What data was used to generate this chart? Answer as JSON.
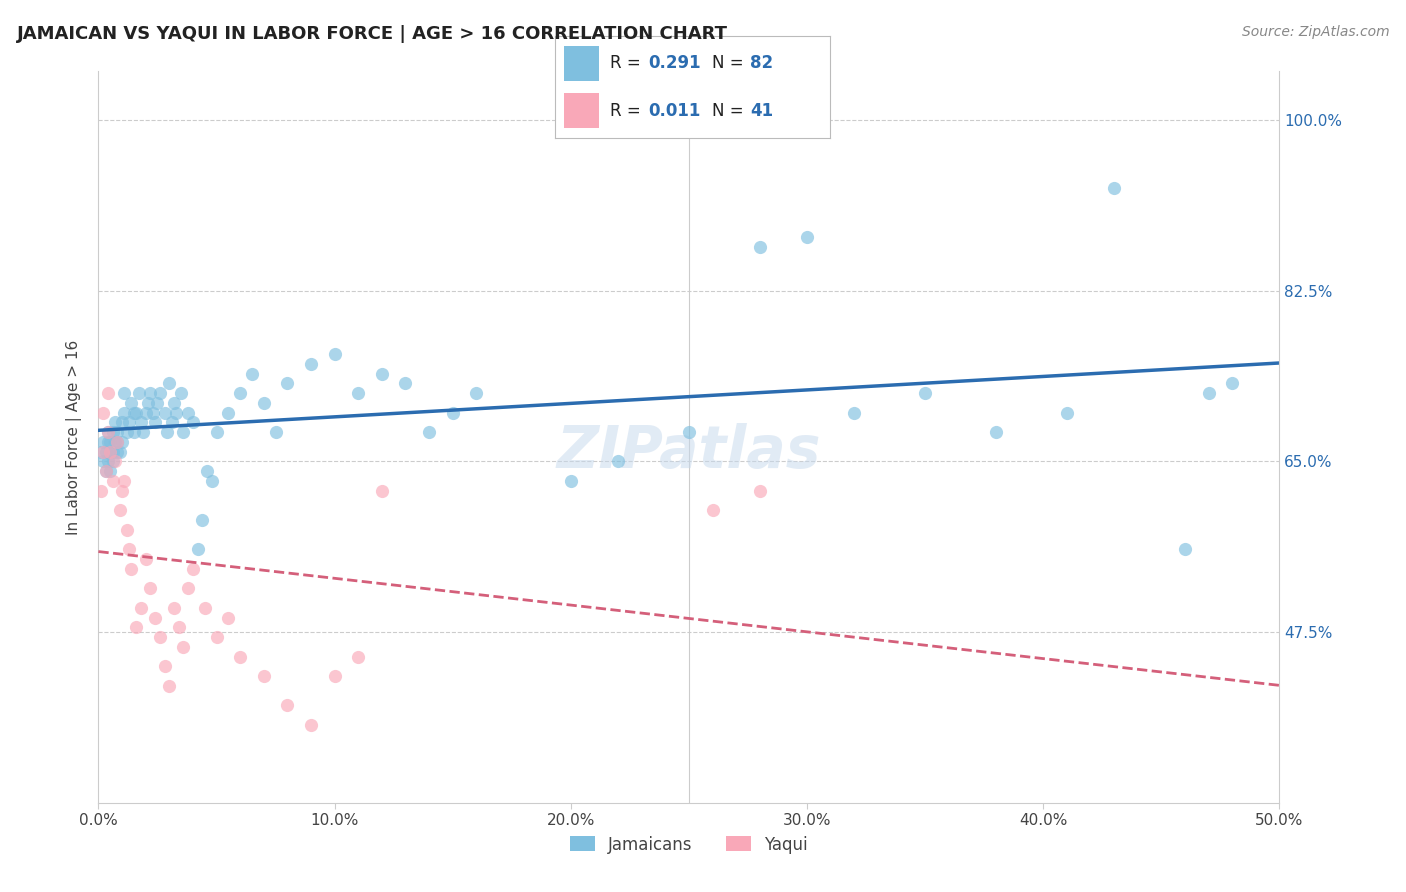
{
  "title": "JAMAICAN VS YAQUI IN LABOR FORCE | AGE > 16 CORRELATION CHART",
  "source": "Source: ZipAtlas.com",
  "ylabel": "In Labor Force | Age > 16",
  "xlim": [
    0.0,
    0.5
  ],
  "ylim": [
    0.3,
    1.05
  ],
  "xtick_labels": [
    "0.0%",
    "10.0%",
    "20.0%",
    "30.0%",
    "40.0%",
    "50.0%"
  ],
  "xtick_vals": [
    0.0,
    0.1,
    0.2,
    0.3,
    0.4,
    0.5
  ],
  "ytick_labels": [
    "100.0%",
    "82.5%",
    "65.0%",
    "47.5%"
  ],
  "ytick_vals": [
    1.0,
    0.825,
    0.65,
    0.475
  ],
  "background_color": "#ffffff",
  "watermark": "ZIPatlas",
  "jamaicans_color": "#7fbfdf",
  "yaqui_color": "#f9a8b8",
  "trend_blue": "#2b6cb0",
  "trend_pink": "#d45f7a",
  "R_jamaicans": 0.291,
  "N_jamaicans": 82,
  "R_yaqui": 0.011,
  "N_yaqui": 41,
  "legend_labels": [
    "Jamaicans",
    "Yaqui"
  ],
  "jamaicans_x": [
    0.001,
    0.002,
    0.002,
    0.003,
    0.003,
    0.004,
    0.004,
    0.004,
    0.005,
    0.005,
    0.005,
    0.006,
    0.006,
    0.006,
    0.007,
    0.007,
    0.008,
    0.008,
    0.008,
    0.009,
    0.01,
    0.01,
    0.011,
    0.011,
    0.012,
    0.013,
    0.014,
    0.015,
    0.015,
    0.016,
    0.017,
    0.018,
    0.019,
    0.02,
    0.021,
    0.022,
    0.023,
    0.024,
    0.025,
    0.026,
    0.028,
    0.029,
    0.03,
    0.031,
    0.032,
    0.033,
    0.035,
    0.036,
    0.038,
    0.04,
    0.042,
    0.044,
    0.046,
    0.048,
    0.05,
    0.055,
    0.06,
    0.065,
    0.07,
    0.075,
    0.08,
    0.09,
    0.1,
    0.11,
    0.12,
    0.13,
    0.14,
    0.15,
    0.16,
    0.2,
    0.22,
    0.25,
    0.28,
    0.3,
    0.32,
    0.35,
    0.38,
    0.41,
    0.43,
    0.46,
    0.47,
    0.48
  ],
  "jamaicans_y": [
    0.66,
    0.65,
    0.67,
    0.64,
    0.66,
    0.65,
    0.67,
    0.68,
    0.64,
    0.66,
    0.67,
    0.65,
    0.66,
    0.68,
    0.67,
    0.69,
    0.66,
    0.67,
    0.68,
    0.66,
    0.67,
    0.69,
    0.72,
    0.7,
    0.68,
    0.69,
    0.71,
    0.7,
    0.68,
    0.7,
    0.72,
    0.69,
    0.68,
    0.7,
    0.71,
    0.72,
    0.7,
    0.69,
    0.71,
    0.72,
    0.7,
    0.68,
    0.73,
    0.69,
    0.71,
    0.7,
    0.72,
    0.68,
    0.7,
    0.69,
    0.56,
    0.59,
    0.64,
    0.63,
    0.68,
    0.7,
    0.72,
    0.74,
    0.71,
    0.68,
    0.73,
    0.75,
    0.76,
    0.72,
    0.74,
    0.73,
    0.68,
    0.7,
    0.72,
    0.63,
    0.65,
    0.68,
    0.87,
    0.88,
    0.7,
    0.72,
    0.68,
    0.7,
    0.93,
    0.56,
    0.72,
    0.73
  ],
  "yaqui_x": [
    0.001,
    0.002,
    0.002,
    0.003,
    0.004,
    0.004,
    0.005,
    0.006,
    0.007,
    0.008,
    0.009,
    0.01,
    0.011,
    0.012,
    0.013,
    0.014,
    0.016,
    0.018,
    0.02,
    0.022,
    0.024,
    0.026,
    0.028,
    0.03,
    0.032,
    0.034,
    0.036,
    0.038,
    0.04,
    0.045,
    0.05,
    0.055,
    0.06,
    0.07,
    0.08,
    0.09,
    0.1,
    0.11,
    0.12,
    0.26,
    0.28
  ],
  "yaqui_y": [
    0.62,
    0.66,
    0.7,
    0.64,
    0.68,
    0.72,
    0.66,
    0.63,
    0.65,
    0.67,
    0.6,
    0.62,
    0.63,
    0.58,
    0.56,
    0.54,
    0.48,
    0.5,
    0.55,
    0.52,
    0.49,
    0.47,
    0.44,
    0.42,
    0.5,
    0.48,
    0.46,
    0.52,
    0.54,
    0.5,
    0.47,
    0.49,
    0.45,
    0.43,
    0.4,
    0.38,
    0.43,
    0.45,
    0.62,
    0.6,
    0.62
  ]
}
